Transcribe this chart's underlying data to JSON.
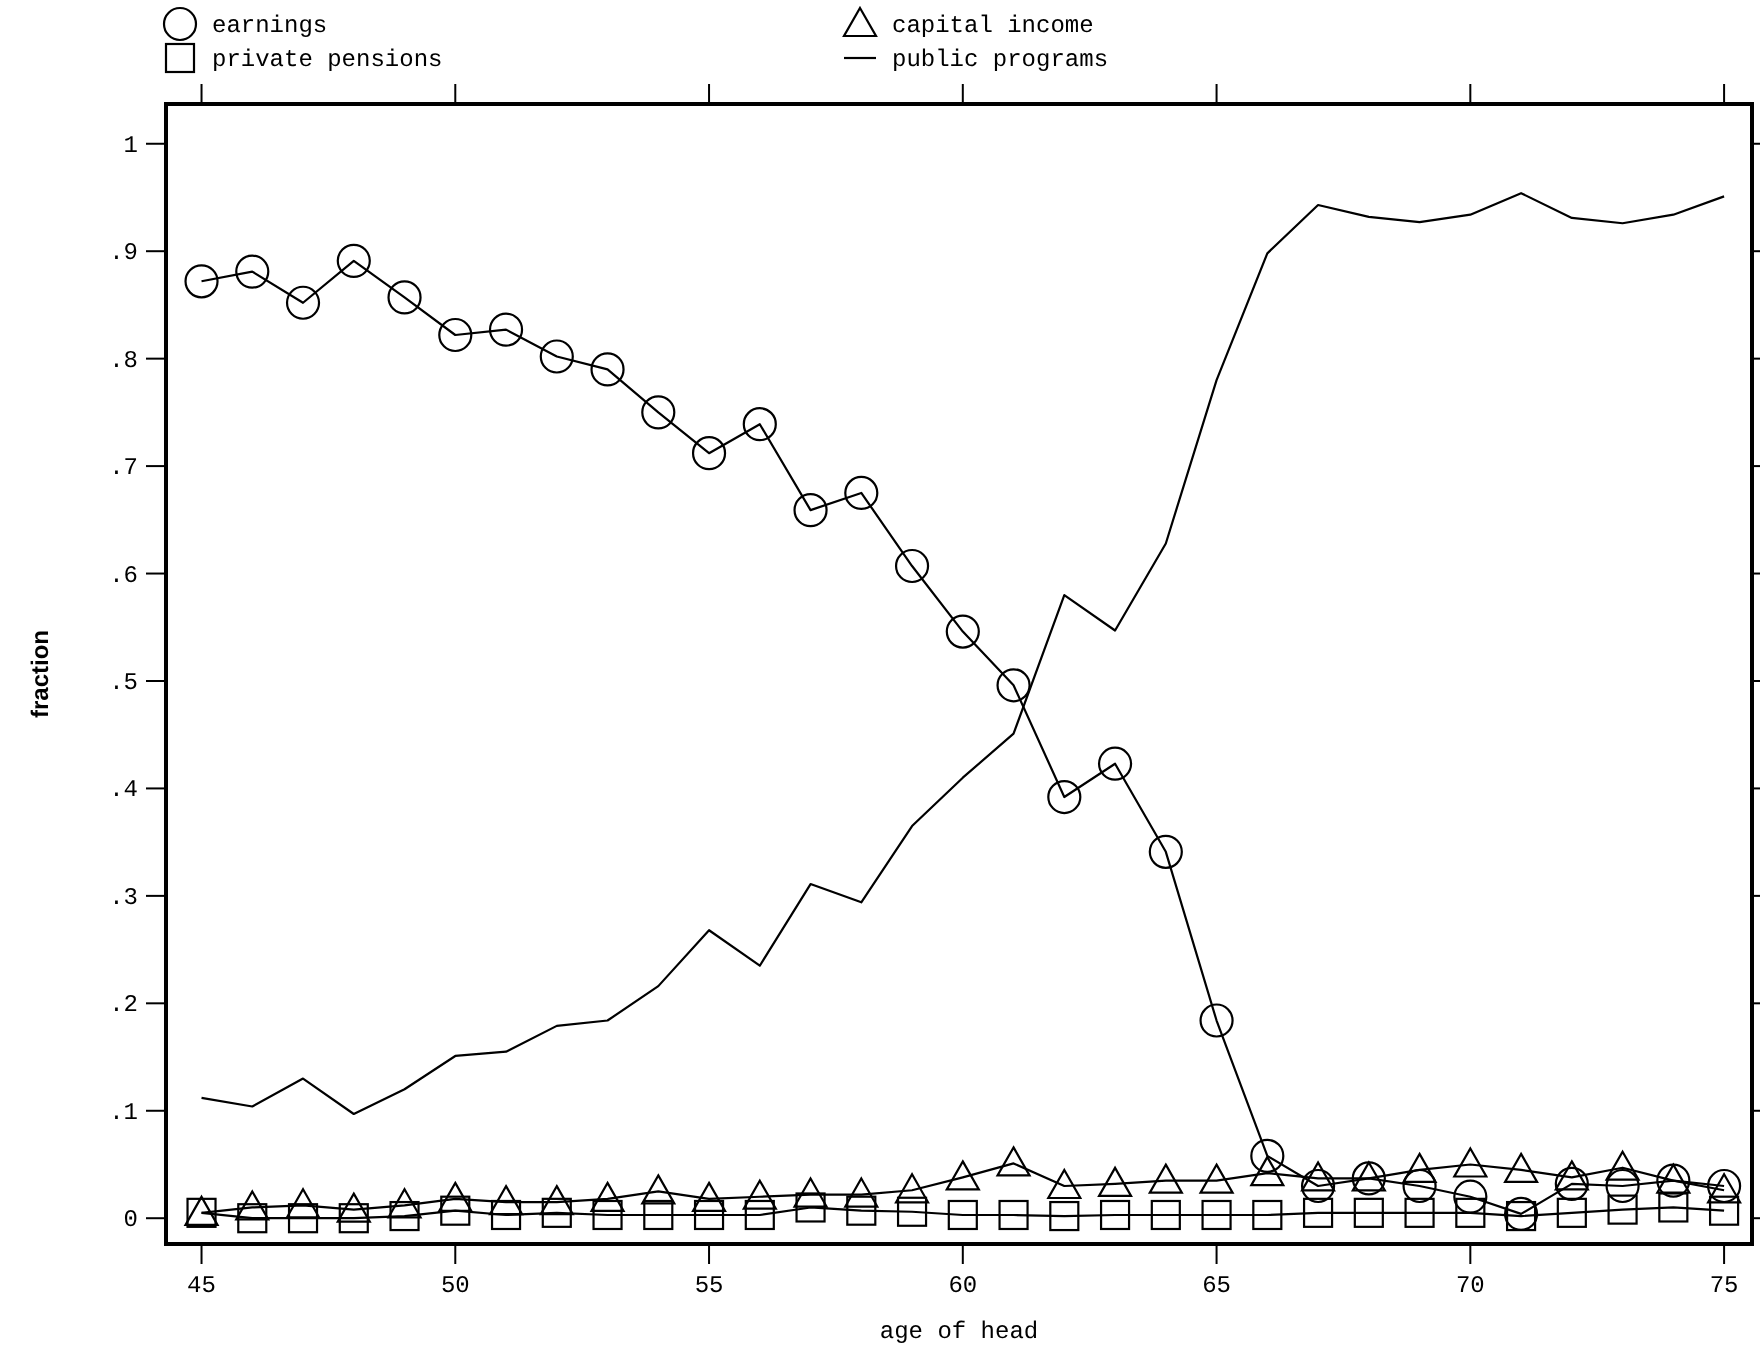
{
  "chart_data": {
    "type": "line",
    "xlabel": "age of head",
    "ylabel": "fraction",
    "x": [
      45,
      46,
      47,
      48,
      49,
      50,
      51,
      52,
      53,
      54,
      55,
      56,
      57,
      58,
      59,
      60,
      61,
      62,
      63,
      64,
      65,
      66,
      67,
      68,
      69,
      70,
      71,
      72,
      73,
      74,
      75
    ],
    "series": [
      {
        "name": "earnings",
        "color": "#000000",
        "marker": "circle",
        "values": [
          0.872,
          0.881,
          0.852,
          0.891,
          0.857,
          0.822,
          0.827,
          0.802,
          0.79,
          0.75,
          0.712,
          0.739,
          0.659,
          0.675,
          0.607,
          0.546,
          0.496,
          0.392,
          0.423,
          0.341,
          0.184,
          0.058,
          0.03,
          0.037,
          0.03,
          0.02,
          0.004,
          0.032,
          0.03,
          0.035,
          0.03
        ]
      },
      {
        "name": "private pensions",
        "color": "#000000",
        "marker": "square",
        "values": [
          0.005,
          0,
          0,
          0,
          0.002,
          0.007,
          0.003,
          0.005,
          0.003,
          0.003,
          0.003,
          0.003,
          0.01,
          0.007,
          0.006,
          0.003,
          0.003,
          0.002,
          0.003,
          0.003,
          0.003,
          0.003,
          0.005,
          0.005,
          0.005,
          0.005,
          0.002,
          0.005,
          0.008,
          0.01,
          0.007
        ]
      },
      {
        "name": "capital income",
        "color": "#000000",
        "marker": "triangle",
        "values": [
          0.005,
          0.01,
          0.012,
          0.008,
          0.012,
          0.018,
          0.015,
          0.015,
          0.018,
          0.025,
          0.018,
          0.02,
          0.022,
          0.022,
          0.026,
          0.038,
          0.051,
          0.03,
          0.032,
          0.035,
          0.035,
          0.042,
          0.037,
          0.037,
          0.045,
          0.05,
          0.045,
          0.038,
          0.047,
          0.035,
          0.026
        ]
      },
      {
        "name": "public programs",
        "color": "#000000",
        "marker": "none",
        "values": [
          0.112,
          0.104,
          0.13,
          0.097,
          0.12,
          0.151,
          0.155,
          0.179,
          0.184,
          0.216,
          0.268,
          0.235,
          0.311,
          0.294,
          0.365,
          0.41,
          0.451,
          0.58,
          0.547,
          0.628,
          0.78,
          0.898,
          0.943,
          0.932,
          0.927,
          0.934,
          0.954,
          0.931,
          0.926,
          0.934,
          0.951
        ]
      }
    ],
    "xlim": [
      44.3,
      75.55
    ],
    "xticks": [
      45,
      50,
      55,
      60,
      65,
      70,
      75
    ],
    "ylim": [
      -0.024,
      1.037
    ],
    "yticks": [
      0,
      {
        "value": 0.1,
        "label": ".1"
      },
      {
        "value": 0.2,
        "label": ".2"
      },
      {
        "value": 0.3,
        "label": ".3"
      },
      {
        "value": 0.4,
        "label": ".4"
      },
      {
        "value": 0.5,
        "label": ".5"
      },
      {
        "value": 0.6,
        "label": ".6"
      },
      {
        "value": 0.7,
        "label": ".7"
      },
      {
        "value": 0.8,
        "label": ".8"
      },
      {
        "value": 0.9,
        "label": ".9"
      },
      1
    ],
    "grid": false,
    "legend": "top",
    "line_style": "solid"
  }
}
